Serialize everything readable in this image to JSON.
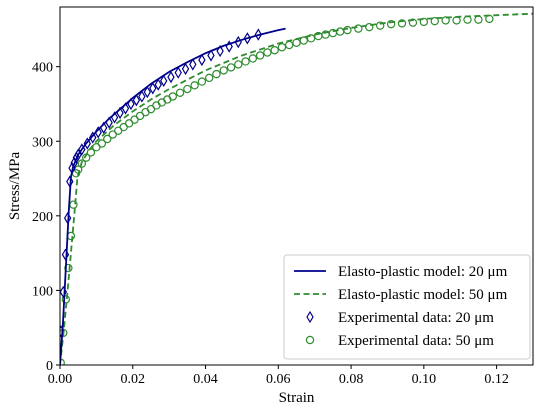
{
  "chart_data": {
    "type": "line",
    "xlabel": "Strain",
    "ylabel": "Stress/MPa",
    "xlim": [
      0,
      0.13
    ],
    "ylim": [
      0,
      480
    ],
    "xticks": [
      "0.00",
      "0.02",
      "0.04",
      "0.06",
      "0.08",
      "0.10",
      "0.12"
    ],
    "yticks": [
      "0",
      "100",
      "200",
      "300",
      "400"
    ],
    "legend_position": "bottom-right",
    "series": [
      {
        "name": "Elasto-plastic model: 20 μm",
        "style": "solid-line",
        "color": "#00008b",
        "x": [
          0,
          0.0008,
          0.0016,
          0.0024,
          0.003,
          0.0036,
          0.005,
          0.007,
          0.01,
          0.013,
          0.016,
          0.02,
          0.025,
          0.03,
          0.035,
          0.04,
          0.045,
          0.05,
          0.055,
          0.06,
          0.062
        ],
        "y": [
          0,
          55,
          130,
          205,
          252,
          266,
          282,
          296,
          313,
          328,
          341,
          358,
          377,
          393,
          406,
          418,
          428,
          436,
          443,
          449,
          451
        ]
      },
      {
        "name": "Elasto-plastic model: 50 μm",
        "style": "dashed-line",
        "color": "#2e8b2e",
        "x": [
          0,
          0.001,
          0.002,
          0.003,
          0.004,
          0.0048,
          0.006,
          0.008,
          0.01,
          0.015,
          0.02,
          0.025,
          0.03,
          0.04,
          0.05,
          0.06,
          0.07,
          0.08,
          0.09,
          0.1,
          0.11,
          0.12,
          0.13
        ],
        "y": [
          0,
          45,
          95,
          150,
          205,
          252,
          272,
          288,
          300,
          322,
          340,
          356,
          370,
          395,
          415,
          431,
          443,
          452,
          459,
          464,
          467,
          469,
          471
        ]
      },
      {
        "name": "Experimental data: 20 μm",
        "style": "diamond-markers",
        "color": "#00008b",
        "x": [
          0.0003,
          0.0009,
          0.0015,
          0.0021,
          0.0027,
          0.0033,
          0.0039,
          0.0045,
          0.005,
          0.006,
          0.0075,
          0.009,
          0.0105,
          0.012,
          0.0135,
          0.015,
          0.0165,
          0.018,
          0.0195,
          0.021,
          0.0225,
          0.024,
          0.0255,
          0.027,
          0.0285,
          0.0305,
          0.0325,
          0.0345,
          0.0365,
          0.039,
          0.0415,
          0.044,
          0.0465,
          0.049,
          0.0515,
          0.0545
        ],
        "y": [
          45,
          98,
          148,
          197,
          246,
          264,
          271,
          278,
          282,
          289,
          297,
          305,
          312,
          318,
          325,
          332,
          338,
          344,
          350,
          355,
          360,
          366,
          371,
          376,
          381,
          386,
          392,
          397,
          403,
          409,
          415,
          421,
          427,
          433,
          438,
          443
        ]
      },
      {
        "name": "Experimental data: 50 μm",
        "style": "circle-markers",
        "color": "#2e8b2e",
        "x": [
          0.0002,
          0.0009,
          0.0016,
          0.0023,
          0.003,
          0.0037,
          0.0044,
          0.005,
          0.006,
          0.0072,
          0.0085,
          0.01,
          0.0115,
          0.013,
          0.0145,
          0.016,
          0.0175,
          0.019,
          0.0205,
          0.022,
          0.0235,
          0.025,
          0.0265,
          0.028,
          0.0295,
          0.031,
          0.033,
          0.035,
          0.037,
          0.039,
          0.041,
          0.043,
          0.045,
          0.047,
          0.049,
          0.051,
          0.053,
          0.055,
          0.057,
          0.059,
          0.061,
          0.063,
          0.065,
          0.067,
          0.069,
          0.071,
          0.073,
          0.075,
          0.077,
          0.079,
          0.082,
          0.085,
          0.088,
          0.091,
          0.094,
          0.097,
          0.1,
          0.103,
          0.106,
          0.109,
          0.112,
          0.115,
          0.118
        ],
        "y": [
          3,
          43,
          88,
          130,
          173,
          215,
          257,
          262,
          270,
          278,
          285,
          292,
          297,
          303,
          309,
          314,
          319,
          324,
          329,
          334,
          339,
          343,
          348,
          352,
          356,
          360,
          365,
          370,
          375,
          380,
          385,
          390,
          395,
          399,
          403,
          407,
          411,
          415,
          419,
          422,
          426,
          429,
          432,
          435,
          438,
          441,
          443,
          445,
          447,
          449,
          451,
          453,
          455,
          457,
          458,
          459,
          460,
          461,
          462,
          462,
          463,
          463,
          464
        ]
      }
    ]
  },
  "legend": {
    "items": [
      "Elasto-plastic model: 20 μm",
      "Elasto-plastic model: 50 μm",
      "Experimental data: 20 μm",
      "Experimental data: 50 μm"
    ]
  }
}
